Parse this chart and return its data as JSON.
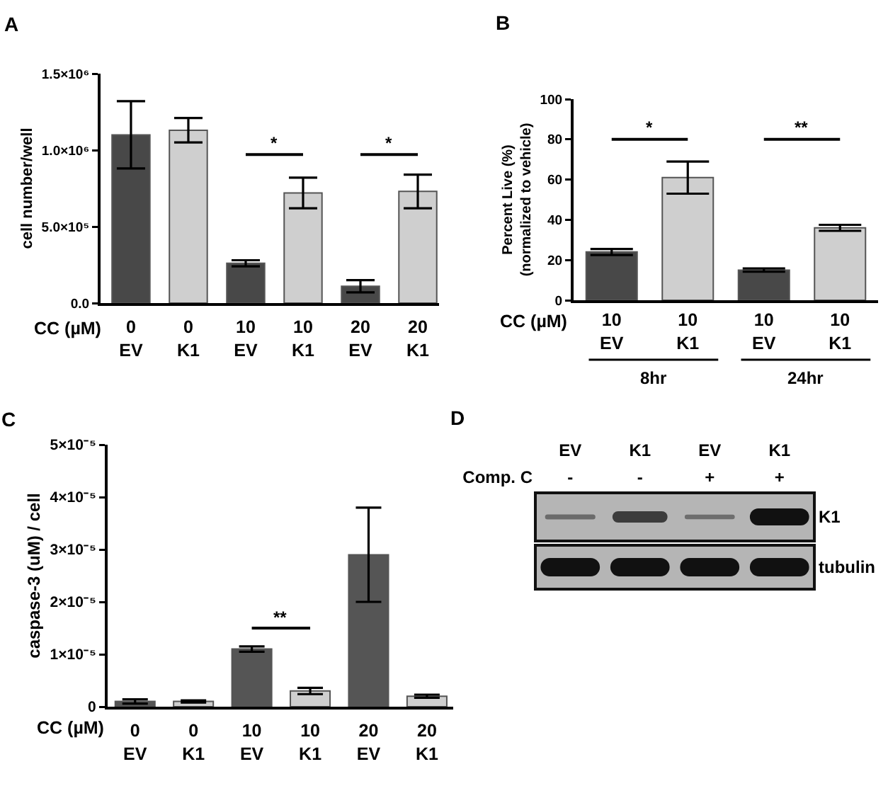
{
  "chart_data": [
    {
      "type": "bar",
      "title": "A",
      "categories": [
        "0\nEV",
        "0\nK1",
        "10\nEV",
        "10\nK1",
        "20\nEV",
        "20\nK1"
      ],
      "xlabel": "CC (µM)",
      "ylabel": "cell number/well",
      "values": [
        1100000,
        1130000,
        260000,
        720000,
        110000,
        730000
      ],
      "errors": [
        220000,
        80000,
        20000,
        100000,
        40000,
        110000
      ],
      "colors": [
        "#484848",
        "#cfcfcf",
        "#484848",
        "#cfcfcf",
        "#484848",
        "#cfcfcf"
      ],
      "ylim": [
        0,
        1500000
      ],
      "yticks": [
        {
          "value": 0,
          "label": "0.0"
        },
        {
          "value": 500000,
          "label": "5.0×10⁵"
        },
        {
          "value": 1000000,
          "label": "1.0×10⁶"
        },
        {
          "value": 1500000,
          "label": "1.5×10⁶"
        }
      ],
      "annotations": [
        "*",
        "*"
      ]
    },
    {
      "type": "bar",
      "title": "B",
      "categories": [
        "10\nEV",
        "10\nK1",
        "10\nEV",
        "10\nK1"
      ],
      "xlabel": "CC (µM)",
      "ylabel": "Percent Live (%)\n(normalized to vehicle)",
      "values": [
        24,
        61,
        15,
        36
      ],
      "errors": [
        1.5,
        8,
        0.8,
        1.5
      ],
      "colors": [
        "#484848",
        "#cfcfcf",
        "#484848",
        "#cfcfcf"
      ],
      "ylim": [
        0,
        100
      ],
      "yticks": [
        0,
        20,
        40,
        60,
        80,
        100
      ],
      "annotations": [
        "*",
        "**",
        "8hr",
        "24hr"
      ]
    },
    {
      "type": "bar",
      "title": "C",
      "categories": [
        "0\nEV",
        "0\nK1",
        "10\nEV",
        "10\nK1",
        "20\nEV",
        "20\nK1"
      ],
      "xlabel": "CC (µM)",
      "ylabel": "caspase-3 (uM) / cell",
      "values": [
        1e-06,
        1e-06,
        1.1e-05,
        3e-06,
        2.9e-05,
        2e-06
      ],
      "errors": [
        4e-07,
        2e-07,
        5e-07,
        6e-07,
        9e-06,
        3e-07
      ],
      "colors": [
        "#555555",
        "#cfcfcf",
        "#555555",
        "#cfcfcf",
        "#555555",
        "#cfcfcf"
      ],
      "ylim": [
        0,
        5e-05
      ],
      "yticks": [
        0,
        {
          "value": 1e-05,
          "label": "1×10⁻⁵"
        },
        {
          "value": 2e-05,
          "label": "2×10⁻⁵"
        },
        {
          "value": 3e-05,
          "label": "3×10⁻⁵"
        },
        {
          "value": 4e-05,
          "label": "4×10⁻⁵"
        },
        {
          "value": 5e-05,
          "label": "5×10⁻⁵"
        }
      ],
      "annotations": [
        "**"
      ]
    },
    {
      "type": "other",
      "title": "D",
      "categories": [
        "EV",
        "K1",
        "EV",
        "K1"
      ],
      "y_categories": [
        "K1",
        "tubulin"
      ],
      "annotations": [
        "Comp. C",
        "-",
        "-",
        "+",
        "+"
      ]
    }
  ]
}
